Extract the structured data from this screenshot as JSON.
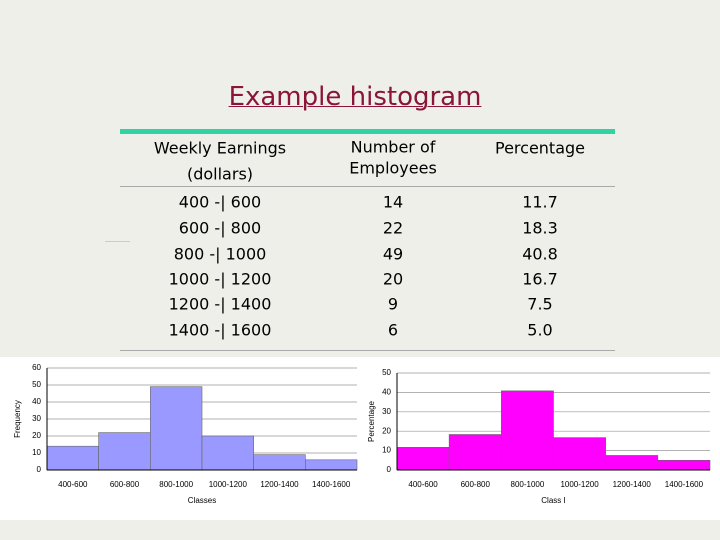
{
  "title": "Example histogram",
  "table": {
    "header": [
      "Weekly Earnings",
      "(dollars)",
      "Number of",
      "Employees",
      "Percentage"
    ],
    "rows": [
      [
        "400 -| 600",
        "14",
        "11.7"
      ],
      [
        "600 -| 800",
        "22",
        "18.3"
      ],
      [
        "800 -| 1000",
        "49",
        "40.8"
      ],
      [
        "1000 -| 1200",
        "20",
        "16.7"
      ],
      [
        "1200 -| 1400",
        "9",
        "7.5"
      ],
      [
        "1400 -| 1600",
        "6",
        "5.0"
      ]
    ]
  },
  "chart_data": [
    {
      "type": "bar",
      "x_label": "Classes",
      "y_label": "Frequency",
      "categories": [
        "400-600",
        "600-800",
        "800-1000",
        "1000-1200",
        "1200-1400",
        "1400-1600"
      ],
      "values": [
        14,
        22,
        49,
        20,
        9,
        6
      ],
      "color": "#9999ff",
      "ylim": [
        0,
        60
      ],
      "yticks": [
        0,
        10,
        20,
        30,
        40,
        50,
        60
      ],
      "grid": true
    },
    {
      "type": "bar",
      "x_label": "Class I",
      "y_label": "Percentage",
      "categories": [
        "400-600",
        "600-800",
        "800-1000",
        "1000-1200",
        "1200-1400",
        "1400-1600"
      ],
      "values": [
        11.7,
        18.3,
        40.8,
        16.7,
        7.5,
        5.0
      ],
      "color": "#ff00ff",
      "ylim": [
        0,
        50
      ],
      "yticks": [
        0,
        10,
        20,
        30,
        40,
        50
      ],
      "grid": true
    }
  ]
}
